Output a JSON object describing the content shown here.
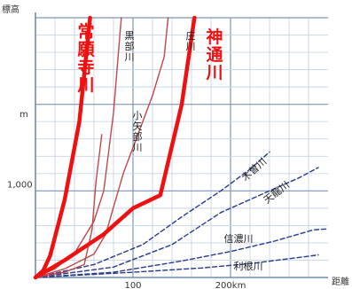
{
  "chart_data": {
    "type": "line",
    "title": "",
    "xlabel": "距離",
    "ylabel": "標高",
    "x_unit": "km",
    "y_unit": "m",
    "xlim": [
      0,
      300
    ],
    "ylim": [
      0,
      3000
    ],
    "x_ticks": [
      {
        "value": 100,
        "label": "100"
      },
      {
        "value": 200,
        "label": "200km"
      }
    ],
    "y_ticks": [
      {
        "value": 1000,
        "label": "1,000"
      }
    ],
    "grid": true,
    "series": [
      {
        "name": "常願寺川",
        "color": "#ee1111",
        "width": 4.5,
        "dash": "",
        "label_vertical": true,
        "label_bold": true,
        "points": [
          [
            0,
            0
          ],
          [
            8,
            80
          ],
          [
            15,
            250
          ],
          [
            30,
            900
          ],
          [
            45,
            1800
          ],
          [
            56,
            3000
          ]
        ]
      },
      {
        "name": "黒部川",
        "color": "#c04848",
        "width": 1.4,
        "dash": "",
        "label_vertical": true,
        "label_bold": false,
        "points": [
          [
            0,
            0
          ],
          [
            20,
            100
          ],
          [
            40,
            280
          ],
          [
            60,
            650
          ],
          [
            70,
            1000
          ],
          [
            80,
            1900
          ],
          [
            88,
            3000
          ]
        ]
      },
      {
        "name": "小矢部川",
        "color": "#c04848",
        "width": 1.4,
        "dash": "",
        "label_vertical": true,
        "label_bold": false,
        "points": [
          [
            0,
            0
          ],
          [
            30,
            60
          ],
          [
            50,
            150
          ],
          [
            58,
            550
          ],
          [
            62,
            1100
          ],
          [
            68,
            1650
          ]
        ]
      },
      {
        "name": "庄川",
        "color": "#c04848",
        "width": 1.4,
        "dash": "",
        "label_vertical": true,
        "label_bold": false,
        "points": [
          [
            0,
            0
          ],
          [
            30,
            100
          ],
          [
            60,
            270
          ],
          [
            72,
            500
          ],
          [
            90,
            1200
          ],
          [
            120,
            2100
          ],
          [
            132,
            2550
          ],
          [
            136,
            3000
          ]
        ]
      },
      {
        "name": "神通川",
        "color": "#ee1111",
        "width": 4.5,
        "dash": "",
        "label_vertical": true,
        "label_bold": true,
        "points": [
          [
            0,
            0
          ],
          [
            30,
            200
          ],
          [
            70,
            500
          ],
          [
            100,
            800
          ],
          [
            128,
            950
          ],
          [
            150,
            2000
          ],
          [
            163,
            3000
          ]
        ]
      },
      {
        "name": "木曽川",
        "color": "#2a3a8c",
        "width": 1.4,
        "dash": "5,3",
        "label_vertical": false,
        "label_bold": false,
        "points": [
          [
            0,
            0
          ],
          [
            60,
            150
          ],
          [
            110,
            380
          ],
          [
            150,
            700
          ],
          [
            190,
            1000
          ],
          [
            220,
            1250
          ],
          [
            240,
            1450
          ]
        ]
      },
      {
        "name": "天龍川",
        "color": "#2a3a8c",
        "width": 1.4,
        "dash": "5,3",
        "label_vertical": false,
        "label_bold": false,
        "points": [
          [
            0,
            0
          ],
          [
            80,
            120
          ],
          [
            140,
            380
          ],
          [
            190,
            750
          ],
          [
            240,
            1000
          ],
          [
            270,
            1150
          ],
          [
            290,
            1270
          ]
        ]
      },
      {
        "name": "信濃川",
        "color": "#2a3a8c",
        "width": 1.4,
        "dash": "5,3",
        "label_vertical": false,
        "label_bold": false,
        "points": [
          [
            0,
            0
          ],
          [
            80,
            60
          ],
          [
            150,
            190
          ],
          [
            200,
            300
          ],
          [
            245,
            420
          ],
          [
            285,
            550
          ],
          [
            298,
            560
          ]
        ]
      },
      {
        "name": "利根川",
        "color": "#2a3a8c",
        "width": 1.4,
        "dash": "5,3",
        "label_vertical": false,
        "label_bold": false,
        "points": [
          [
            0,
            0
          ],
          [
            100,
            60
          ],
          [
            170,
            110
          ],
          [
            220,
            160
          ],
          [
            255,
            210
          ],
          [
            290,
            260
          ]
        ]
      }
    ]
  }
}
